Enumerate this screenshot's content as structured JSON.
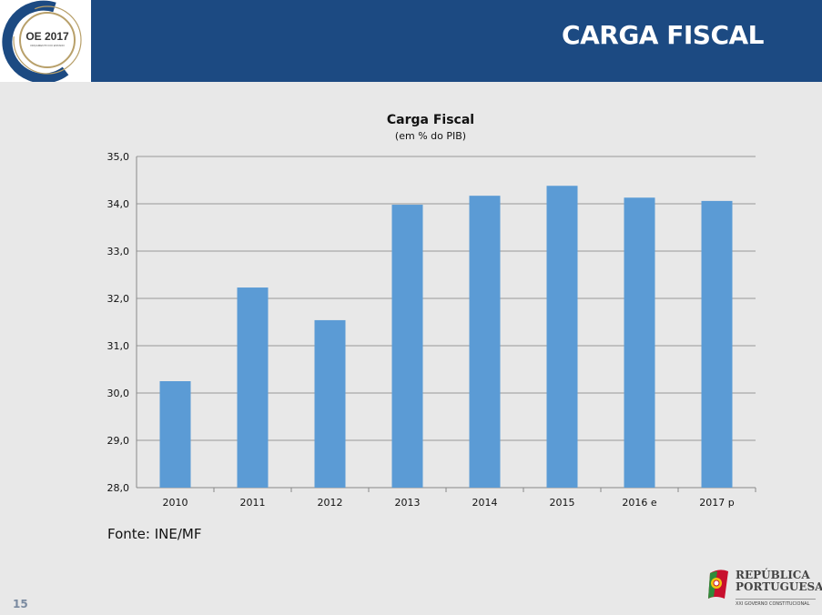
{
  "header": {
    "title": "CARGA FISCAL",
    "logo_text": "OE 2017",
    "logo_subtext": "ORÇAMENTO DO ESTADO"
  },
  "footer": {
    "source": "Fonte: INE/MF",
    "page_number": "15",
    "brand_line1": "REPÚBLICA",
    "brand_line2": "PORTUGUESA",
    "brand_sub": "XXI GOVERNO CONSTITUCIONAL"
  },
  "colors": {
    "header": "#1c4a82",
    "bar": "#5b9bd5"
  },
  "chart_data": {
    "type": "bar",
    "title": "Carga Fiscal",
    "subtitle": "(em % do PIB)",
    "xlabel": "",
    "ylabel": "",
    "categories": [
      "2010",
      "2011",
      "2012",
      "2013",
      "2014",
      "2015",
      "2016 e",
      "2017 p"
    ],
    "values": [
      30.25,
      32.23,
      31.54,
      33.98,
      34.17,
      34.38,
      34.13,
      34.06
    ],
    "ylim": [
      28,
      35
    ],
    "yticks": [
      "28,0",
      "29,0",
      "30,0",
      "31,0",
      "32,0",
      "33,0",
      "34,0",
      "35,0"
    ],
    "grid": true,
    "legend": "none"
  }
}
